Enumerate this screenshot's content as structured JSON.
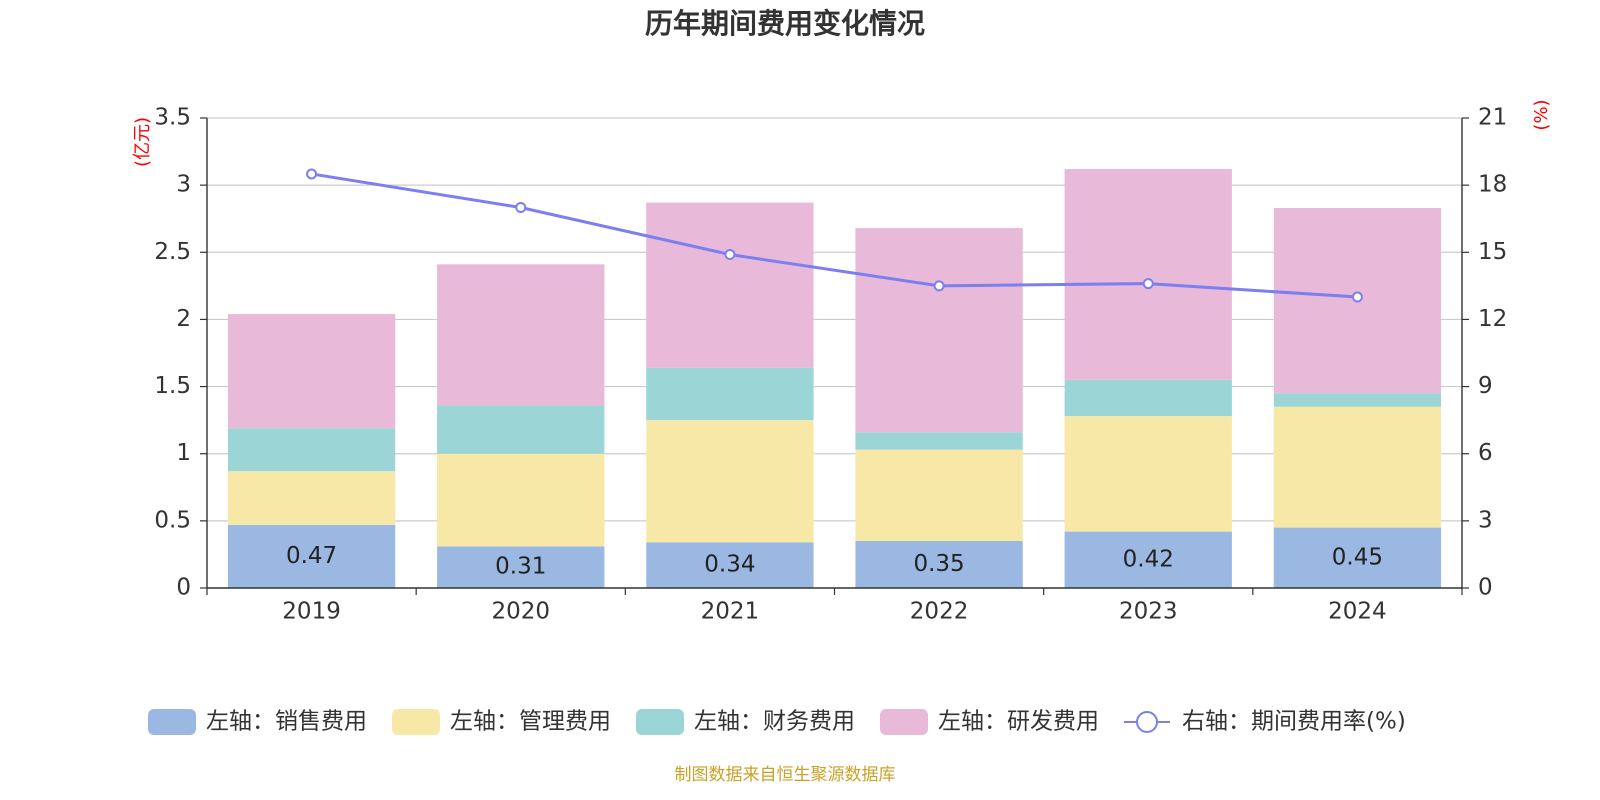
{
  "chart_data": {
    "type": "bar",
    "stacked": true,
    "title": "历年期间费用变化情况",
    "categories": [
      "2019",
      "2020",
      "2021",
      "2022",
      "2023",
      "2024"
    ],
    "left_axis": {
      "unit": "(亿元)",
      "ylim": [
        0,
        3.5
      ],
      "ticks": [
        "0",
        "0.5",
        "1",
        "1.5",
        "2",
        "2.5",
        "3",
        "3.5"
      ],
      "tick_values": [
        0,
        0.5,
        1,
        1.5,
        2,
        2.5,
        3,
        3.5
      ]
    },
    "right_axis": {
      "unit": "(%)",
      "ylim": [
        0,
        21
      ],
      "ticks": [
        "0",
        "3",
        "6",
        "9",
        "12",
        "15",
        "18",
        "21"
      ],
      "tick_values": [
        0,
        3,
        6,
        9,
        12,
        15,
        18,
        21
      ]
    },
    "series": [
      {
        "name": "左轴：销售费用",
        "axis": "left",
        "color": "#9bb8e2",
        "values": [
          0.47,
          0.31,
          0.34,
          0.35,
          0.42,
          0.45
        ],
        "labels": [
          "0.47",
          "0.31",
          "0.34",
          "0.35",
          "0.42",
          "0.45"
        ]
      },
      {
        "name": "左轴：管理费用",
        "axis": "left",
        "color": "#f8e8a8",
        "values": [
          0.4,
          0.69,
          0.91,
          0.68,
          0.86,
          0.9
        ]
      },
      {
        "name": "左轴：财务费用",
        "axis": "left",
        "color": "#9bd5d5",
        "values": [
          0.32,
          0.36,
          0.39,
          0.13,
          0.27,
          0.1
        ]
      },
      {
        "name": "左轴：研发费用",
        "axis": "left",
        "color": "#e8b9d9",
        "values": [
          0.85,
          1.05,
          1.23,
          1.52,
          1.57,
          1.38
        ]
      },
      {
        "name": "右轴：期间费用率(%)",
        "axis": "right",
        "type": "line",
        "color": "#7b7ff0",
        "values": [
          18.5,
          17.0,
          14.9,
          13.5,
          13.6,
          13.0
        ]
      }
    ],
    "grid": true,
    "legend_position": "bottom",
    "source": "制图数据来自恒生聚源数据库"
  }
}
